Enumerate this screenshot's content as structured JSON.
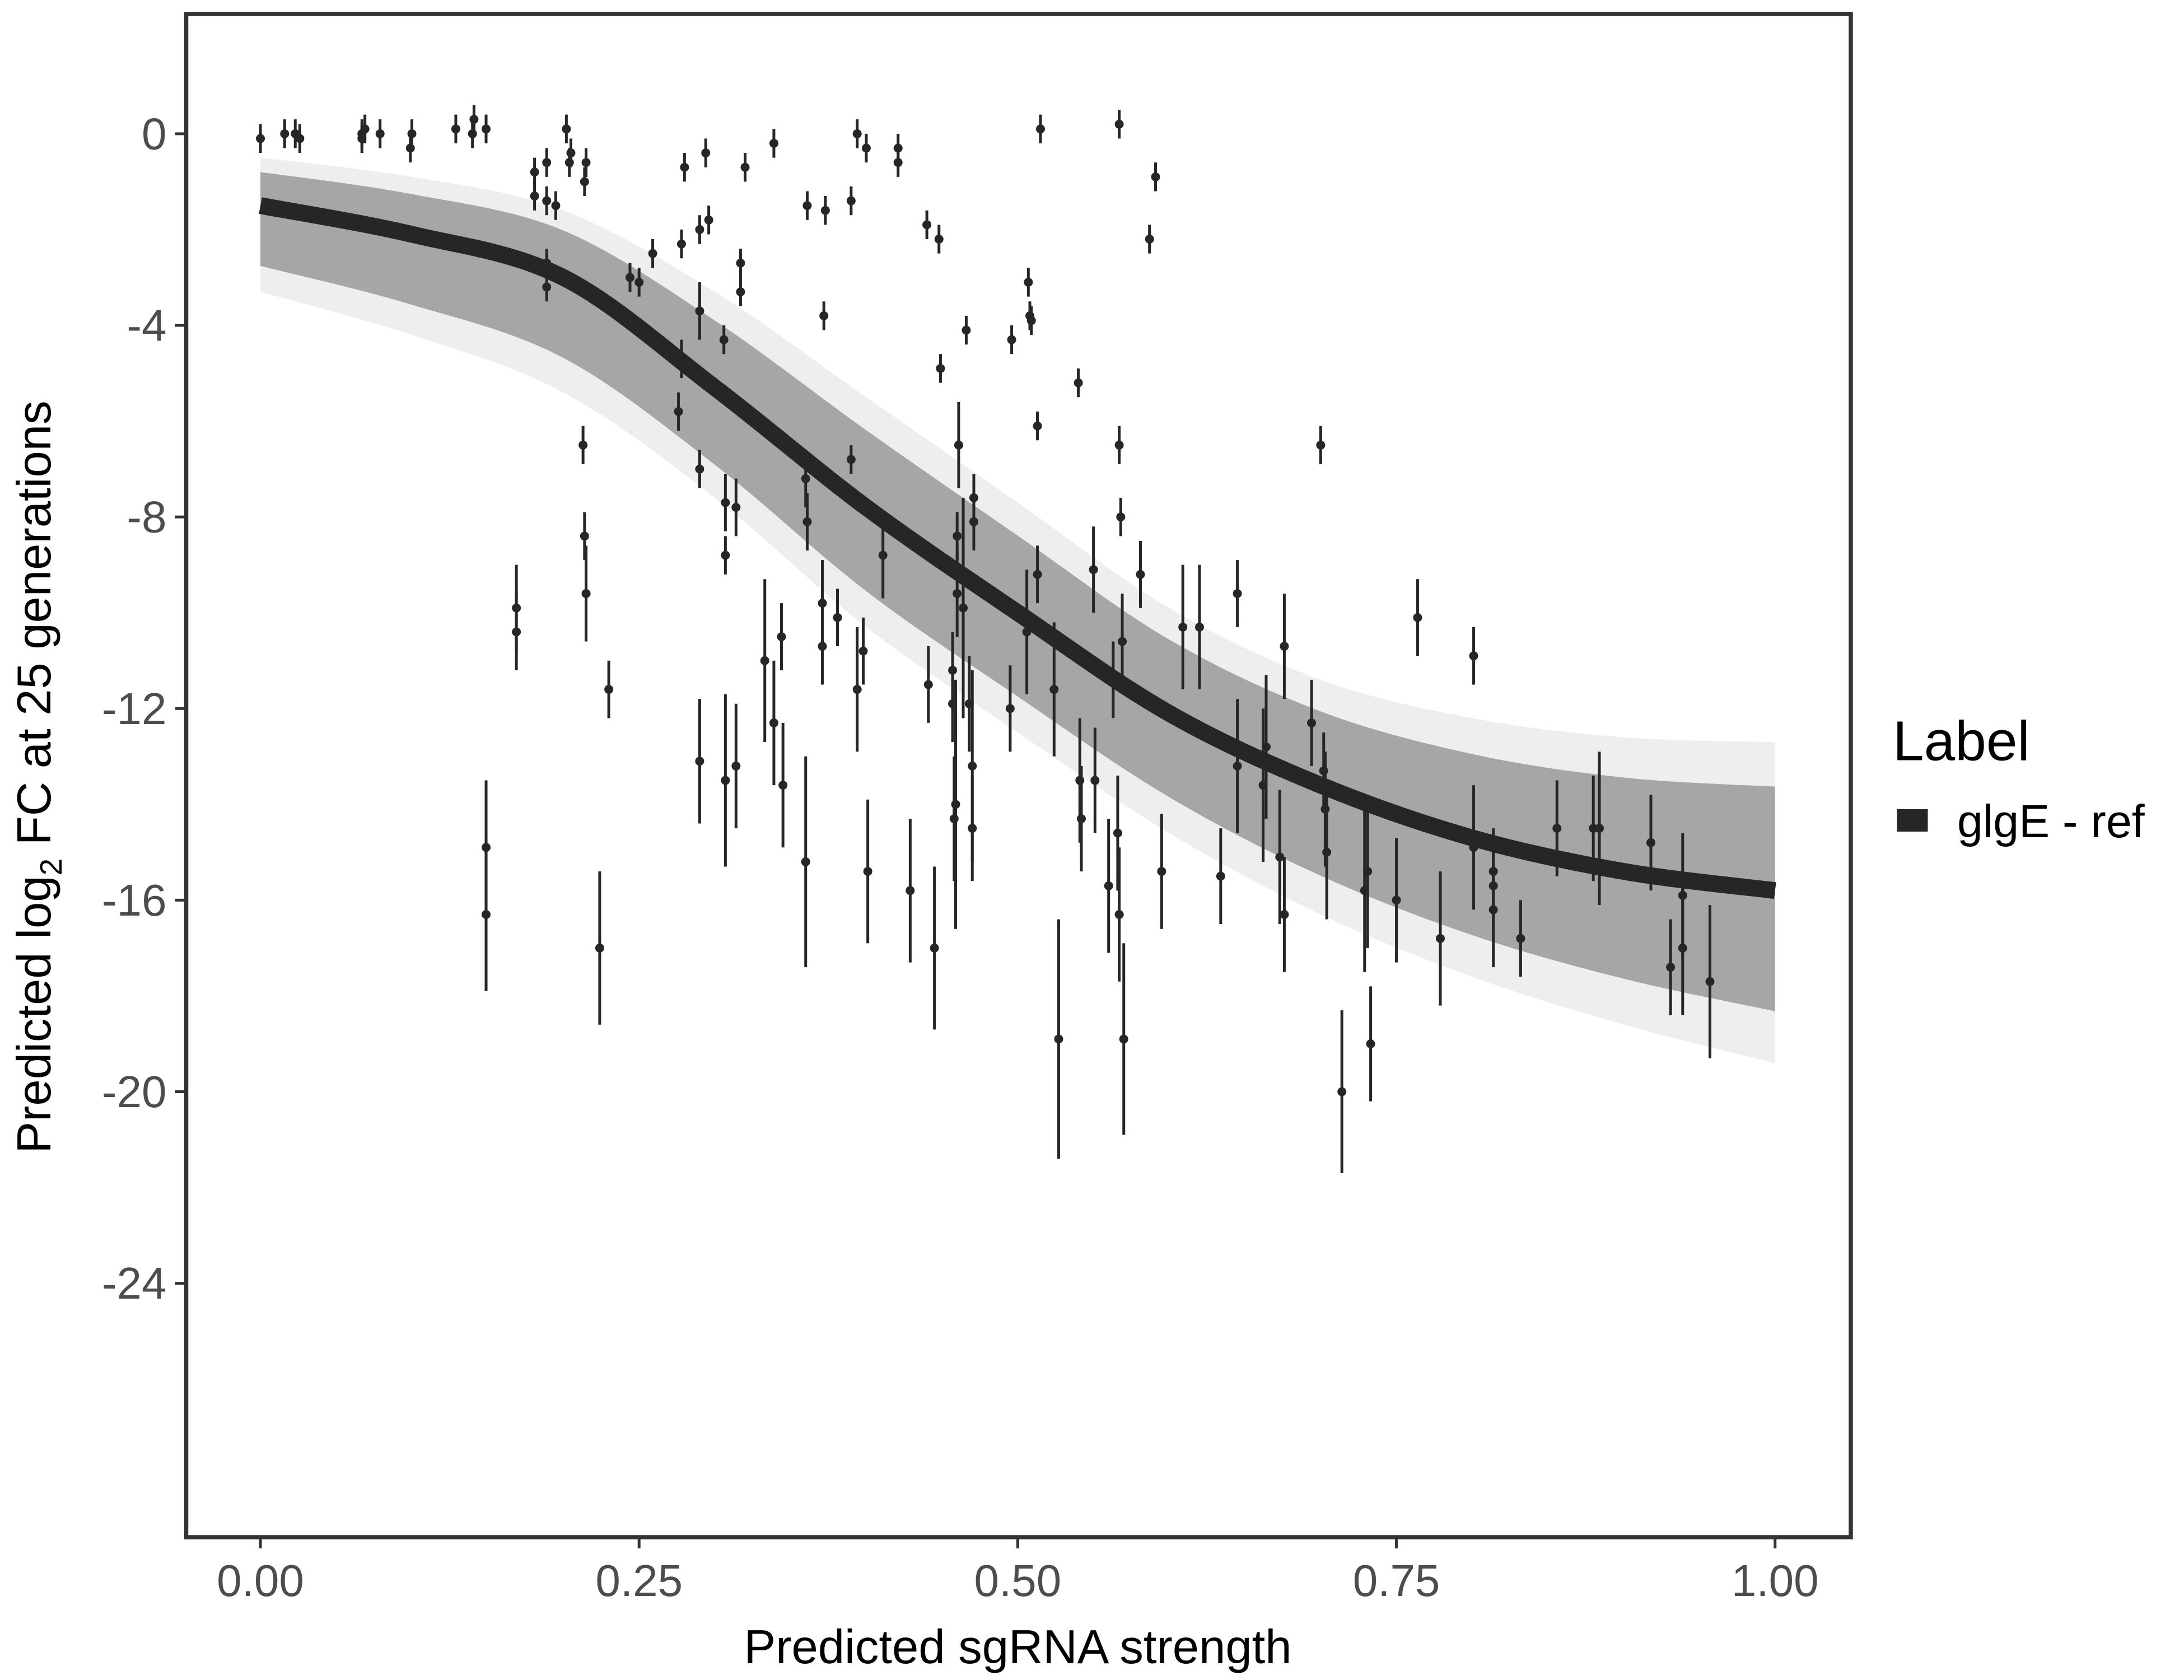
{
  "chart_data": {
    "type": "scatter",
    "xlabel": "Predicted sgRNA strength",
    "ylabel_parts": [
      "Predicted  log",
      "2",
      " FC at 25 generations"
    ],
    "xlim": [
      -0.049,
      1.05
    ],
    "ylim": [
      -29.3,
      2.5
    ],
    "grid": false,
    "x_ticks": [
      0,
      0.25,
      0.5,
      0.75,
      1
    ],
    "x_tick_labels": [
      "0.00",
      "0.25",
      "0.50",
      "0.75",
      "1.00"
    ],
    "y_ticks": [
      0,
      -4,
      -8,
      -12,
      -16,
      -20,
      -24
    ],
    "y_tick_labels": [
      "0",
      "-4",
      "-8",
      "-12",
      "-16",
      "-20",
      "-24"
    ],
    "legend": {
      "title": "Label",
      "placement": "right",
      "entries": [
        {
          "label": "glgE - ref",
          "color": "#262626"
        }
      ]
    },
    "colors": {
      "fit": "#262626",
      "band": "#a6a6a6",
      "band_outer": "#eeeeee",
      "points": "#262626",
      "axis": "#333333"
    },
    "fit_curve": {
      "x": [
        0,
        0.1,
        0.2,
        0.3,
        0.4,
        0.5,
        0.6,
        0.7,
        0.8,
        0.9,
        1.0
      ],
      "y": [
        -1.5,
        -2.1,
        -3.0,
        -5.3,
        -7.8,
        -10.0,
        -12.1,
        -13.6,
        -14.7,
        -15.4,
        -15.8
      ],
      "band_upper": [
        -0.5,
        -0.9,
        -1.6,
        -3.3,
        -5.5,
        -7.7,
        -9.9,
        -11.4,
        -12.2,
        -12.6,
        -12.7
      ],
      "band_lower": [
        -3.3,
        -4.2,
        -5.4,
        -7.6,
        -10.3,
        -12.5,
        -14.6,
        -16.3,
        -17.6,
        -18.6,
        -19.4
      ]
    },
    "points_x_y_err": [
      [
        0,
        -0.1,
        0.3
      ],
      [
        0.016,
        0,
        0.3
      ],
      [
        0.023,
        0,
        0.3
      ],
      [
        0.026,
        -0.1,
        0.3
      ],
      [
        0.067,
        0,
        0.3
      ],
      [
        0.069,
        0.1,
        0.3
      ],
      [
        0.067,
        -0.1,
        0.3
      ],
      [
        0.079,
        0,
        0.3
      ],
      [
        0.099,
        -0.3,
        0.3
      ],
      [
        0.1,
        0,
        0.3
      ],
      [
        0.129,
        0.1,
        0.3
      ],
      [
        0.141,
        0.3,
        0.3
      ],
      [
        0.14,
        0,
        0.3
      ],
      [
        0.149,
        0.1,
        0.3
      ],
      [
        0.202,
        0.1,
        0.3
      ],
      [
        0.205,
        -0.4,
        0.3
      ],
      [
        0.204,
        -0.6,
        0.3
      ],
      [
        0.214,
        -1.0,
        0.3
      ],
      [
        0.181,
        -0.8,
        0.3
      ],
      [
        0.181,
        -1.3,
        0.3
      ],
      [
        0.189,
        -0.6,
        0.3
      ],
      [
        0.189,
        -1.4,
        0.3
      ],
      [
        0.195,
        -1.5,
        0.3
      ],
      [
        0.215,
        -0.6,
        0.3
      ],
      [
        0.189,
        -2.7,
        0.3
      ],
      [
        0.189,
        -3.2,
        0.3
      ],
      [
        0.244,
        -3.0,
        0.3
      ],
      [
        0.25,
        -3.1,
        0.3
      ],
      [
        0.259,
        -2.5,
        0.3
      ],
      [
        0.278,
        -2.3,
        0.3
      ],
      [
        0.28,
        -0.7,
        0.3
      ],
      [
        0.29,
        -2.0,
        0.3
      ],
      [
        0.296,
        -1.8,
        0.3
      ],
      [
        0.294,
        -0.4,
        0.3
      ],
      [
        0.32,
        -0.7,
        0.3
      ],
      [
        0.339,
        -0.2,
        0.3
      ],
      [
        0.361,
        -1.5,
        0.3
      ],
      [
        0.373,
        -1.6,
        0.3
      ],
      [
        0.372,
        -3.8,
        0.3
      ],
      [
        0.39,
        -1.4,
        0.3
      ],
      [
        0.394,
        0,
        0.3
      ],
      [
        0.4,
        -0.3,
        0.3
      ],
      [
        0.421,
        -0.3,
        0.3
      ],
      [
        0.421,
        -0.6,
        0.3
      ],
      [
        0.44,
        -1.9,
        0.3
      ],
      [
        0.449,
        -4.9,
        0.3
      ],
      [
        0.466,
        -4.1,
        0.3
      ],
      [
        0.448,
        -2.2,
        0.3
      ],
      [
        0.496,
        -4.3,
        0.3
      ],
      [
        0.507,
        -3.1,
        0.3
      ],
      [
        0.508,
        -3.8,
        0.3
      ],
      [
        0.509,
        -3.9,
        0.3
      ],
      [
        0.515,
        0.1,
        0.3
      ],
      [
        0.513,
        -6.1,
        0.3
      ],
      [
        0.54,
        -5.2,
        0.3
      ],
      [
        0.567,
        0.2,
        0.3
      ],
      [
        0.591,
        -0.9,
        0.3
      ],
      [
        0.587,
        -2.2,
        0.3
      ],
      [
        0.567,
        -6.5,
        0.4
      ],
      [
        0.568,
        -8.0,
        0.4
      ],
      [
        0.7,
        -6.5,
        0.4
      ],
      [
        0.213,
        -6.5,
        0.4
      ],
      [
        0.214,
        -8.4,
        0.5
      ],
      [
        0.215,
        -9.6,
        1.0
      ],
      [
        0.169,
        -9.9,
        0.9
      ],
      [
        0.169,
        -10.4,
        0.8
      ],
      [
        0.149,
        -14.9,
        1.4
      ],
      [
        0.149,
        -16.3,
        1.6
      ],
      [
        0.23,
        -11.6,
        0.6
      ],
      [
        0.224,
        -17.0,
        1.6
      ],
      [
        0.278,
        -4.7,
        0.4
      ],
      [
        0.276,
        -5.8,
        0.4
      ],
      [
        0.29,
        -3.7,
        0.6
      ],
      [
        0.29,
        -7.0,
        0.4
      ],
      [
        0.306,
        -4.3,
        0.3
      ],
      [
        0.307,
        -7.7,
        0.6
      ],
      [
        0.307,
        -8.8,
        0.4
      ],
      [
        0.314,
        -7.8,
        0.6
      ],
      [
        0.29,
        -13.1,
        1.3
      ],
      [
        0.307,
        -13.5,
        1.8
      ],
      [
        0.314,
        -13.2,
        1.3
      ],
      [
        0.317,
        -2.7,
        0.3
      ],
      [
        0.317,
        -3.3,
        0.3
      ],
      [
        0.333,
        -11.0,
        1.7
      ],
      [
        0.339,
        -12.3,
        1.3
      ],
      [
        0.344,
        -10.5,
        0.7
      ],
      [
        0.345,
        -13.6,
        1.3
      ],
      [
        0.36,
        -7.2,
        0.6
      ],
      [
        0.361,
        -8.1,
        0.6
      ],
      [
        0.36,
        -15.2,
        2.2
      ],
      [
        0.371,
        -9.8,
        0.9
      ],
      [
        0.371,
        -10.7,
        0.8
      ],
      [
        0.381,
        -10.1,
        0.6
      ],
      [
        0.39,
        -6.8,
        0.3
      ],
      [
        0.394,
        -11.6,
        1.3
      ],
      [
        0.398,
        -10.8,
        0.7
      ],
      [
        0.401,
        -15.4,
        1.5
      ],
      [
        0.411,
        -8.8,
        0.9
      ],
      [
        0.429,
        -15.8,
        1.5
      ],
      [
        0.441,
        -11.5,
        0.8
      ],
      [
        0.445,
        -17.0,
        1.7
      ],
      [
        0.457,
        -11.2,
        0.8
      ],
      [
        0.457,
        -11.9,
        0.8
      ],
      [
        0.459,
        -14.0,
        2.6
      ],
      [
        0.458,
        -14.3,
        1.3
      ],
      [
        0.461,
        -6.5,
        0.9
      ],
      [
        0.46,
        -8.4,
        0.5
      ],
      [
        0.46,
        -9.6,
        0.9
      ],
      [
        0.464,
        -9.9,
        2.3
      ],
      [
        0.468,
        -11.9,
        1.0
      ],
      [
        0.47,
        -13.2,
        2.0
      ],
      [
        0.471,
        -8.1,
        0.6
      ],
      [
        0.471,
        -7.6,
        0.5
      ],
      [
        0.47,
        -14.5,
        1.1
      ],
      [
        0.513,
        -9.2,
        0.6
      ],
      [
        0.495,
        -12.0,
        0.9
      ],
      [
        0.506,
        -10.4,
        1.3
      ],
      [
        0.527,
        -18.9,
        2.5
      ],
      [
        0.524,
        -11.6,
        1.4
      ],
      [
        0.541,
        -13.5,
        1.3
      ],
      [
        0.542,
        -14.3,
        1.1
      ],
      [
        0.551,
        -13.5,
        1.1
      ],
      [
        0.55,
        -9.1,
        0.9
      ],
      [
        0.56,
        -15.7,
        1.4
      ],
      [
        0.563,
        -11.4,
        0.8
      ],
      [
        0.567,
        -16.3,
        1.4
      ],
      [
        0.566,
        -14.6,
        1.2
      ],
      [
        0.57,
        -18.9,
        2.0
      ],
      [
        0.569,
        -10.6,
        1.0
      ],
      [
        0.581,
        -9.2,
        0.7
      ],
      [
        0.595,
        -15.4,
        1.2
      ],
      [
        0.609,
        -10.3,
        1.3
      ],
      [
        0.62,
        -10.3,
        1.3
      ],
      [
        0.634,
        -15.5,
        1.0
      ],
      [
        0.645,
        -9.6,
        0.7
      ],
      [
        0.645,
        -13.2,
        1.4
      ],
      [
        0.662,
        -13.6,
        1.6
      ],
      [
        0.664,
        -12.8,
        1.5
      ],
      [
        0.673,
        -15.1,
        1.4
      ],
      [
        0.676,
        -10.7,
        1.1
      ],
      [
        0.676,
        -16.3,
        1.2
      ],
      [
        0.694,
        -12.3,
        0.9
      ],
      [
        0.702,
        -13.3,
        0.8
      ],
      [
        0.703,
        -14.1,
        1.2
      ],
      [
        0.704,
        -15.0,
        1.4
      ],
      [
        0.714,
        -20.0,
        1.7
      ],
      [
        0.729,
        -15.8,
        1.7
      ],
      [
        0.731,
        -15.4,
        1.6
      ],
      [
        0.733,
        -19.0,
        1.2
      ],
      [
        0.75,
        -16.0,
        1.3
      ],
      [
        0.764,
        -10.1,
        0.8
      ],
      [
        0.779,
        -16.8,
        1.4
      ],
      [
        0.801,
        -10.9,
        0.6
      ],
      [
        0.801,
        -14.9,
        1.3
      ],
      [
        0.814,
        -15.7,
        1.0
      ],
      [
        0.814,
        -15.4,
        0.9
      ],
      [
        0.814,
        -16.2,
        1.2
      ],
      [
        0.832,
        -16.8,
        0.8
      ],
      [
        0.856,
        -14.5,
        1.0
      ],
      [
        0.88,
        -14.5,
        1.1
      ],
      [
        0.884,
        -14.5,
        1.6
      ],
      [
        0.918,
        -14.8,
        1.0
      ],
      [
        0.931,
        -17.4,
        1.0
      ],
      [
        0.939,
        -17.0,
        1.4
      ],
      [
        0.939,
        -15.9,
        1.3
      ],
      [
        0.957,
        -17.7,
        1.6
      ]
    ]
  }
}
